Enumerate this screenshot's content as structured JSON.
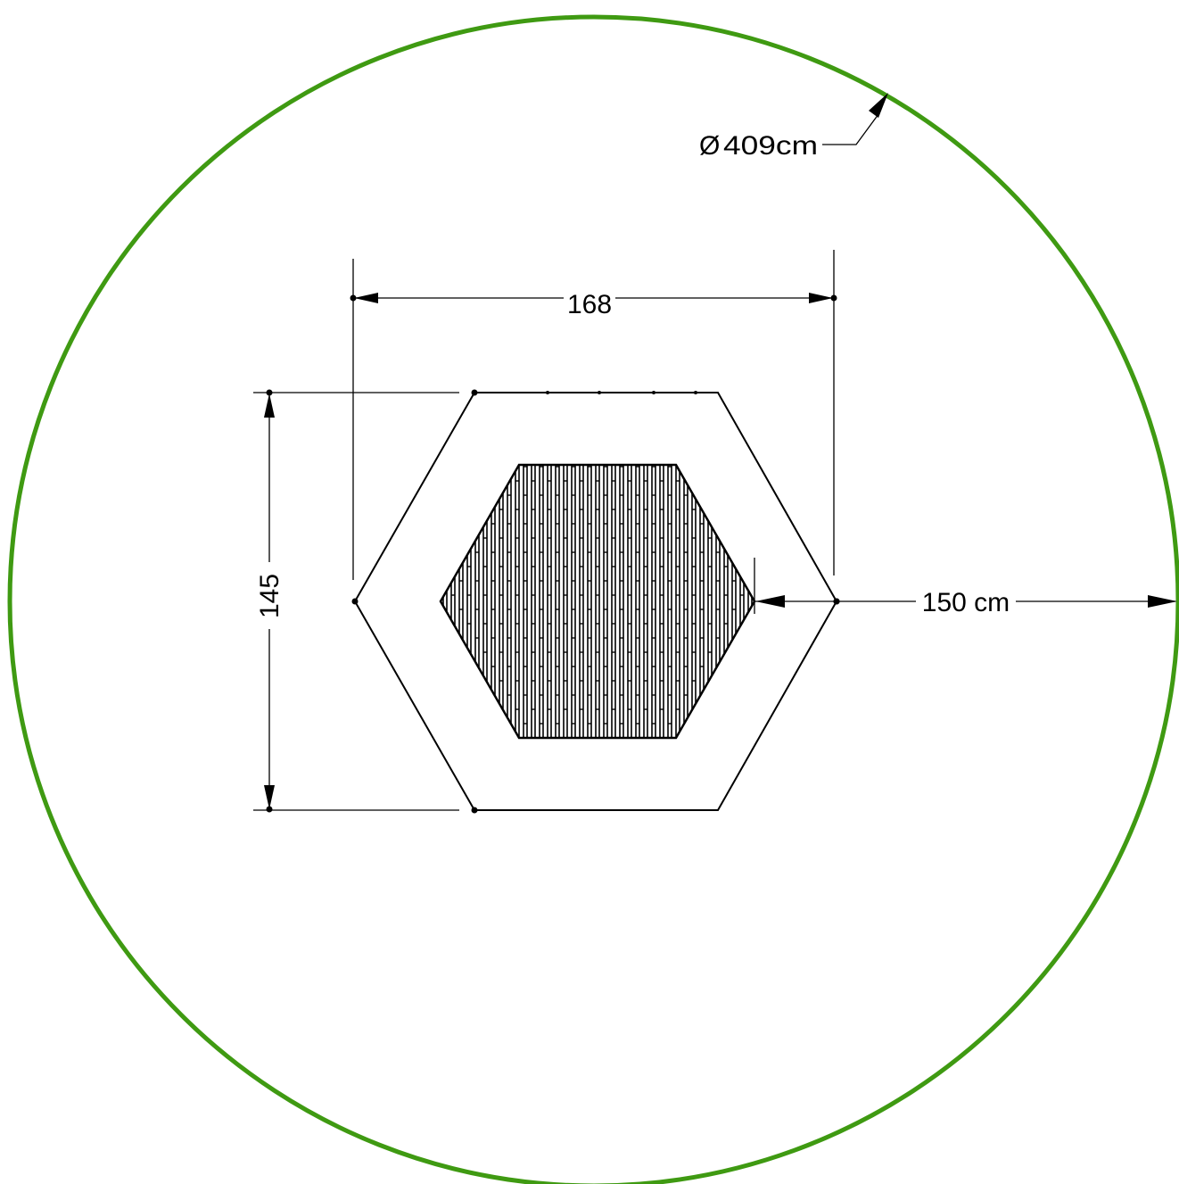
{
  "colors": {
    "safety_zone": "#3f9a12",
    "line": "#000000",
    "background": "#ffffff"
  },
  "labels": {
    "diameter_symbol": "Ø",
    "diameter": "409cm",
    "width": "168",
    "height": "145",
    "clearance": "150 cm"
  },
  "icons": {
    "diameter_symbol": "diameter-icon",
    "arrowhead": "arrowhead-icon"
  }
}
